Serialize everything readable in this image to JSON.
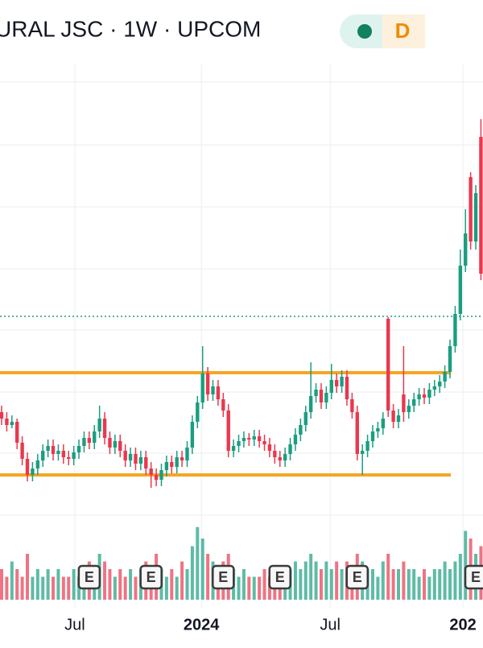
{
  "chart_data": {
    "type": "candlestick",
    "title": "URAL JSC · 1W · UPCOM",
    "badge": "D",
    "ylim": [
      10,
      38
    ],
    "xlim": [
      0,
      93.4
    ],
    "up_color": "#1a9e80",
    "down_color": "#e8384f",
    "grid": true,
    "xticks": [
      {
        "value": 14.2,
        "label": "Jul"
      },
      {
        "value": 38.75,
        "label": "2024"
      },
      {
        "value": 63.75,
        "label": "Jul"
      },
      {
        "value": 89.5,
        "label": "202"
      }
    ],
    "levels": [
      {
        "value": 18.85,
        "color": "#f5a623",
        "style": "solid"
      },
      {
        "value": 12.5,
        "color": "#f5a623",
        "style": "solid"
      },
      {
        "value": 22.35,
        "color": "#1a9e80",
        "style": "dotted"
      }
    ],
    "ohlc": [
      [
        16.4,
        16.8,
        15.6,
        16.0
      ],
      [
        16.0,
        16.4,
        15.2,
        15.6
      ],
      [
        15.6,
        16.2,
        15.4,
        15.8
      ],
      [
        15.8,
        16.0,
        14.1,
        14.5
      ],
      [
        14.5,
        14.9,
        13.1,
        13.5
      ],
      [
        13.5,
        13.9,
        12.1,
        12.5
      ],
      [
        12.5,
        13.3,
        12.1,
        12.9
      ],
      [
        12.9,
        13.8,
        12.5,
        13.4
      ],
      [
        13.4,
        14.4,
        13.0,
        14.0
      ],
      [
        14.0,
        14.7,
        13.6,
        14.3
      ],
      [
        14.3,
        14.7,
        13.4,
        13.8
      ],
      [
        13.8,
        14.4,
        13.4,
        14.0
      ],
      [
        14.0,
        14.4,
        13.2,
        13.6
      ],
      [
        13.6,
        14.0,
        13.1,
        13.5
      ],
      [
        13.5,
        14.3,
        13.1,
        13.9
      ],
      [
        13.9,
        14.7,
        13.5,
        14.3
      ],
      [
        14.3,
        15.2,
        13.9,
        14.8
      ],
      [
        14.8,
        15.2,
        14.1,
        14.5
      ],
      [
        14.5,
        15.6,
        14.1,
        15.2
      ],
      [
        15.2,
        16.8,
        14.8,
        16.0
      ],
      [
        16.0,
        16.4,
        14.4,
        14.8
      ],
      [
        14.8,
        15.2,
        13.8,
        14.2
      ],
      [
        14.2,
        15.0,
        13.8,
        14.6
      ],
      [
        14.6,
        15.0,
        13.6,
        14.0
      ],
      [
        14.0,
        14.4,
        13.0,
        13.4
      ],
      [
        13.4,
        14.2,
        13.0,
        13.8
      ],
      [
        13.8,
        14.2,
        12.8,
        13.2
      ],
      [
        13.2,
        14.0,
        12.8,
        13.6
      ],
      [
        13.6,
        14.0,
        12.5,
        12.9
      ],
      [
        12.9,
        13.3,
        11.7,
        12.5
      ],
      [
        12.5,
        12.9,
        11.8,
        12.2
      ],
      [
        12.2,
        13.2,
        11.8,
        12.8
      ],
      [
        12.8,
        13.7,
        12.4,
        13.3
      ],
      [
        13.3,
        13.7,
        12.6,
        13.0
      ],
      [
        13.0,
        14.0,
        12.6,
        13.6
      ],
      [
        13.6,
        14.0,
        13.0,
        13.4
      ],
      [
        13.4,
        14.6,
        13.0,
        14.2
      ],
      [
        14.2,
        16.2,
        13.8,
        15.8
      ],
      [
        15.8,
        17.4,
        15.4,
        17.0
      ],
      [
        17.0,
        20.5,
        16.6,
        18.8
      ],
      [
        18.8,
        19.2,
        17.1,
        17.5
      ],
      [
        17.5,
        18.4,
        17.1,
        18.0
      ],
      [
        18.0,
        18.4,
        16.8,
        17.2
      ],
      [
        17.2,
        17.6,
        16.1,
        16.5
      ],
      [
        16.5,
        16.9,
        13.6,
        14.0
      ],
      [
        14.0,
        14.7,
        13.6,
        14.3
      ],
      [
        14.3,
        15.0,
        13.9,
        14.6
      ],
      [
        14.6,
        15.2,
        14.2,
        14.8
      ],
      [
        14.8,
        15.1,
        14.3,
        14.7
      ],
      [
        14.7,
        15.3,
        14.3,
        14.9
      ],
      [
        14.9,
        15.3,
        14.2,
        14.6
      ],
      [
        14.6,
        15.0,
        14.0,
        14.4
      ],
      [
        14.4,
        14.8,
        13.6,
        14.0
      ],
      [
        14.0,
        14.4,
        13.2,
        13.6
      ],
      [
        13.6,
        14.0,
        13.0,
        13.4
      ],
      [
        13.4,
        14.2,
        13.0,
        13.8
      ],
      [
        13.8,
        14.8,
        13.4,
        14.4
      ],
      [
        14.4,
        15.4,
        14.0,
        15.0
      ],
      [
        15.0,
        16.0,
        14.6,
        15.6
      ],
      [
        15.6,
        16.8,
        15.2,
        16.4
      ],
      [
        16.4,
        19.5,
        16.0,
        17.4
      ],
      [
        17.4,
        18.2,
        17.0,
        17.8
      ],
      [
        17.8,
        18.2,
        16.6,
        17.0
      ],
      [
        17.0,
        18.0,
        16.6,
        17.6
      ],
      [
        17.6,
        19.4,
        17.2,
        18.4
      ],
      [
        18.4,
        18.8,
        17.6,
        18.0
      ],
      [
        18.0,
        19.0,
        17.6,
        18.6
      ],
      [
        18.6,
        19.0,
        16.8,
        17.2
      ],
      [
        17.2,
        17.6,
        16.0,
        16.4
      ],
      [
        16.4,
        16.8,
        13.4,
        13.8
      ],
      [
        13.8,
        14.4,
        12.5,
        14.0
      ],
      [
        14.0,
        15.0,
        13.6,
        14.6
      ],
      [
        14.6,
        15.6,
        14.2,
        15.2
      ],
      [
        15.2,
        15.8,
        14.8,
        15.4
      ],
      [
        15.4,
        16.4,
        15.0,
        16.0
      ],
      [
        22.2,
        22.3,
        16.1,
        16.5
      ],
      [
        16.5,
        16.9,
        15.4,
        15.8
      ],
      [
        15.8,
        16.6,
        15.4,
        16.2
      ],
      [
        17.5,
        20.5,
        15.8,
        16.4
      ],
      [
        16.4,
        17.2,
        16.0,
        16.8
      ],
      [
        16.8,
        17.6,
        16.4,
        17.2
      ],
      [
        17.2,
        17.9,
        16.8,
        17.5
      ],
      [
        17.5,
        17.9,
        16.9,
        17.3
      ],
      [
        17.3,
        18.2,
        16.9,
        17.8
      ],
      [
        17.8,
        18.4,
        17.4,
        18.0
      ],
      [
        18.0,
        18.7,
        17.6,
        18.3
      ],
      [
        18.3,
        19.3,
        17.9,
        18.9
      ],
      [
        18.9,
        20.9,
        18.5,
        20.5
      ],
      [
        20.5,
        23.0,
        20.1,
        22.5
      ],
      [
        22.5,
        26.5,
        22.1,
        25.5
      ],
      [
        25.5,
        29.0,
        25.1,
        27.5
      ],
      [
        31.0,
        31.3,
        26.5,
        27.0
      ],
      [
        27.0,
        30.5,
        26.5,
        30.0
      ],
      [
        33.5,
        34.6,
        24.6,
        25.0
      ]
    ],
    "vlim": [
      0,
      10
    ],
    "volume": [
      4,
      3,
      5,
      4,
      3,
      6,
      3,
      4,
      3,
      4,
      3,
      4,
      3,
      3,
      4,
      3,
      4,
      5,
      4,
      6,
      5,
      4,
      3,
      4,
      3,
      4,
      3,
      4,
      5,
      4,
      6,
      4,
      3,
      4,
      3,
      5,
      4,
      7,
      9.5,
      8,
      6,
      5,
      4,
      5,
      6,
      4,
      3,
      4,
      3,
      3,
      3,
      4,
      3,
      3,
      4,
      4,
      4,
      5,
      4,
      5,
      6,
      5,
      4,
      5,
      4,
      5,
      4,
      5,
      4,
      6,
      5,
      4,
      4,
      3,
      5,
      6,
      4,
      4,
      5,
      4,
      4,
      3,
      4,
      3,
      4,
      4,
      5,
      4,
      5,
      6,
      9,
      8,
      6,
      7
    ],
    "events": [
      {
        "label": "E",
        "x": 17
      },
      {
        "label": "E",
        "x": 29
      },
      {
        "label": "E",
        "x": 43
      },
      {
        "label": "E",
        "x": 54
      },
      {
        "label": "E",
        "x": 69
      },
      {
        "label": "E",
        "x": 92
      }
    ]
  }
}
